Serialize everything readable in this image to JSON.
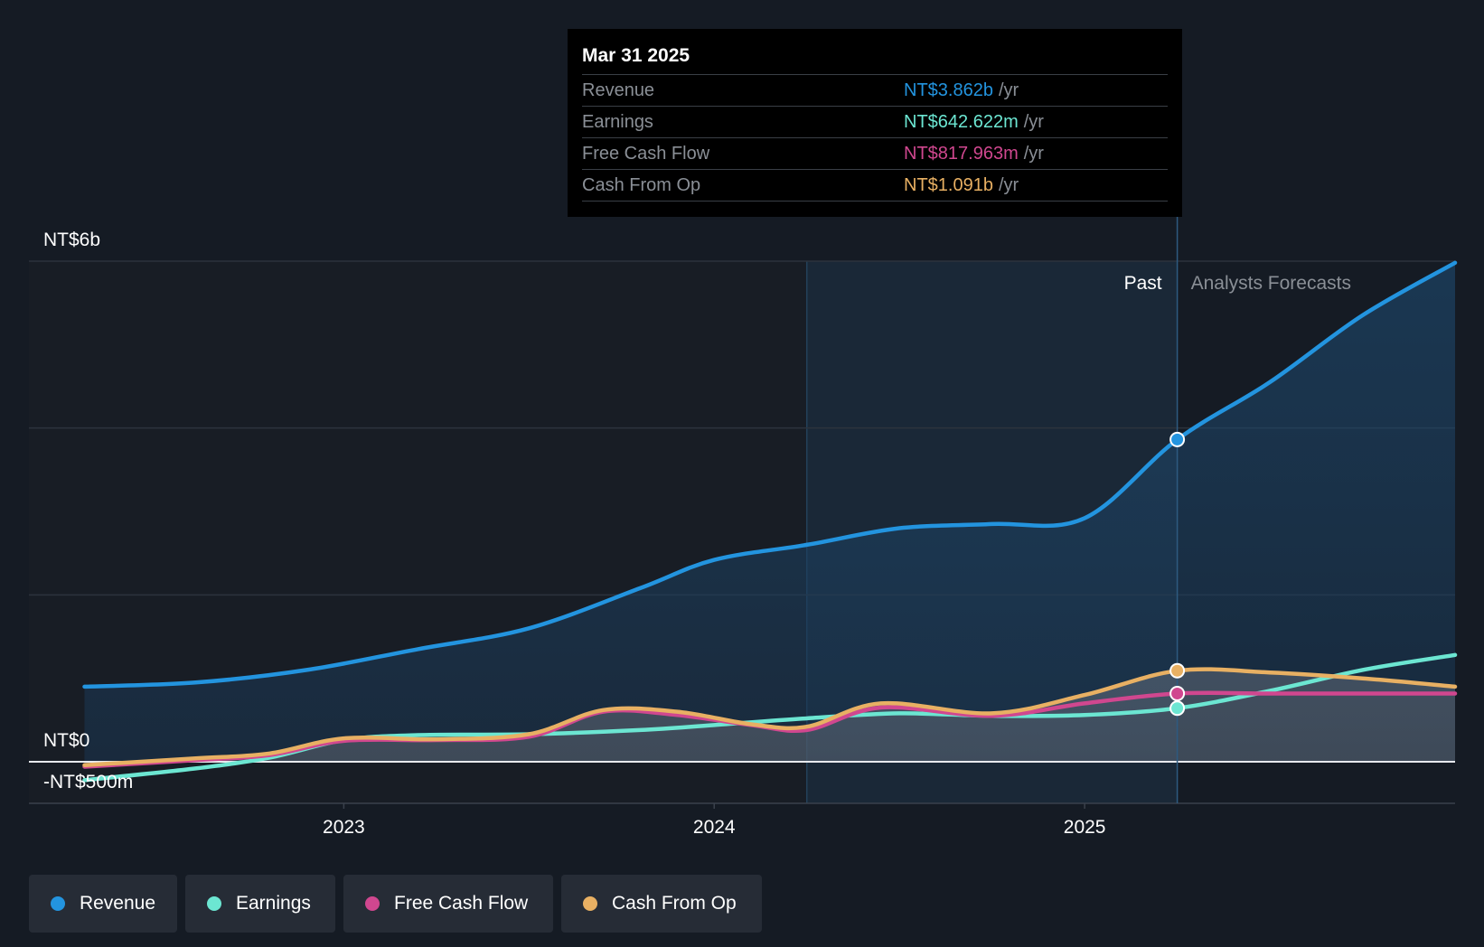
{
  "chart_data": {
    "type": "area",
    "y_unit": "NT$ billions",
    "ylim": [
      -0.5,
      6
    ],
    "y_tick_labels": [
      {
        "value": 6,
        "label": "NT$6b"
      },
      {
        "value": 0,
        "label": "NT$0"
      },
      {
        "value": -0.5,
        "label": "-NT$500m"
      }
    ],
    "x_ticks": [
      {
        "value": 2023.0,
        "label": "2023"
      },
      {
        "value": 2024.0,
        "label": "2024"
      },
      {
        "value": 2025.0,
        "label": "2025"
      }
    ],
    "xlim": [
      2022.15,
      2026.0
    ],
    "past_start": 2024.25,
    "divider_x": 2025.25,
    "past_label": "Past",
    "forecast_label": "Analysts Forecasts",
    "series": [
      {
        "name": "Revenue",
        "color": "#2394df",
        "fill": true,
        "x": [
          2022.3,
          2022.6,
          2022.9,
          2023.2,
          2023.5,
          2023.8,
          2024.0,
          2024.25,
          2024.5,
          2024.75,
          2025.0,
          2025.25,
          2025.5,
          2025.75,
          2026.0
        ],
        "y": [
          0.9,
          0.95,
          1.1,
          1.35,
          1.6,
          2.08,
          2.42,
          2.6,
          2.8,
          2.85,
          2.92,
          3.862,
          4.55,
          5.35,
          5.98
        ],
        "forecast_from_index": 11
      },
      {
        "name": "Earnings",
        "color": "#6ce6d2",
        "fill": true,
        "x": [
          2022.3,
          2022.6,
          2022.8,
          2023.0,
          2023.2,
          2023.5,
          2023.8,
          2024.0,
          2024.25,
          2024.5,
          2024.75,
          2025.0,
          2025.25,
          2025.5,
          2025.75,
          2026.0
        ],
        "y": [
          -0.22,
          -0.08,
          0.05,
          0.26,
          0.32,
          0.33,
          0.38,
          0.44,
          0.52,
          0.58,
          0.55,
          0.56,
          0.642,
          0.85,
          1.1,
          1.28
        ],
        "forecast_from_index": 12
      },
      {
        "name": "Free Cash Flow",
        "color": "#d0478f",
        "fill": false,
        "x": [
          2022.3,
          2022.6,
          2022.8,
          2023.0,
          2023.25,
          2023.5,
          2023.7,
          2023.9,
          2024.1,
          2024.25,
          2024.45,
          2024.75,
          2025.0,
          2025.25,
          2025.5,
          2025.75,
          2026.0
        ],
        "y": [
          -0.06,
          0.02,
          0.08,
          0.25,
          0.26,
          0.3,
          0.6,
          0.56,
          0.44,
          0.38,
          0.65,
          0.55,
          0.7,
          0.818,
          0.818,
          0.818,
          0.818
        ],
        "forecast_from_index": 13
      },
      {
        "name": "Cash From Op",
        "color": "#e8b063",
        "fill": false,
        "x": [
          2022.3,
          2022.6,
          2022.8,
          2023.0,
          2023.25,
          2023.5,
          2023.7,
          2023.9,
          2024.1,
          2024.25,
          2024.45,
          2024.75,
          2025.0,
          2025.25,
          2025.5,
          2025.75,
          2026.0
        ],
        "y": [
          -0.04,
          0.04,
          0.1,
          0.28,
          0.27,
          0.33,
          0.62,
          0.6,
          0.45,
          0.42,
          0.7,
          0.58,
          0.8,
          1.091,
          1.07,
          1.0,
          0.9
        ],
        "forecast_from_index": 13
      }
    ]
  },
  "tooltip": {
    "date": "Mar 31 2025",
    "unit": "/yr",
    "rows": [
      {
        "label": "Revenue",
        "value": "NT$3.862b",
        "color": "#2394df"
      },
      {
        "label": "Earnings",
        "value": "NT$642.622m",
        "color": "#6ce6d2"
      },
      {
        "label": "Free Cash Flow",
        "value": "NT$817.963m",
        "color": "#d0478f"
      },
      {
        "label": "Cash From Op",
        "value": "NT$1.091b",
        "color": "#e8b063"
      }
    ]
  },
  "legend": [
    {
      "label": "Revenue",
      "color": "#2394df"
    },
    {
      "label": "Earnings",
      "color": "#6ce6d2"
    },
    {
      "label": "Free Cash Flow",
      "color": "#d0478f"
    },
    {
      "label": "Cash From Op",
      "color": "#e8b063"
    }
  ]
}
